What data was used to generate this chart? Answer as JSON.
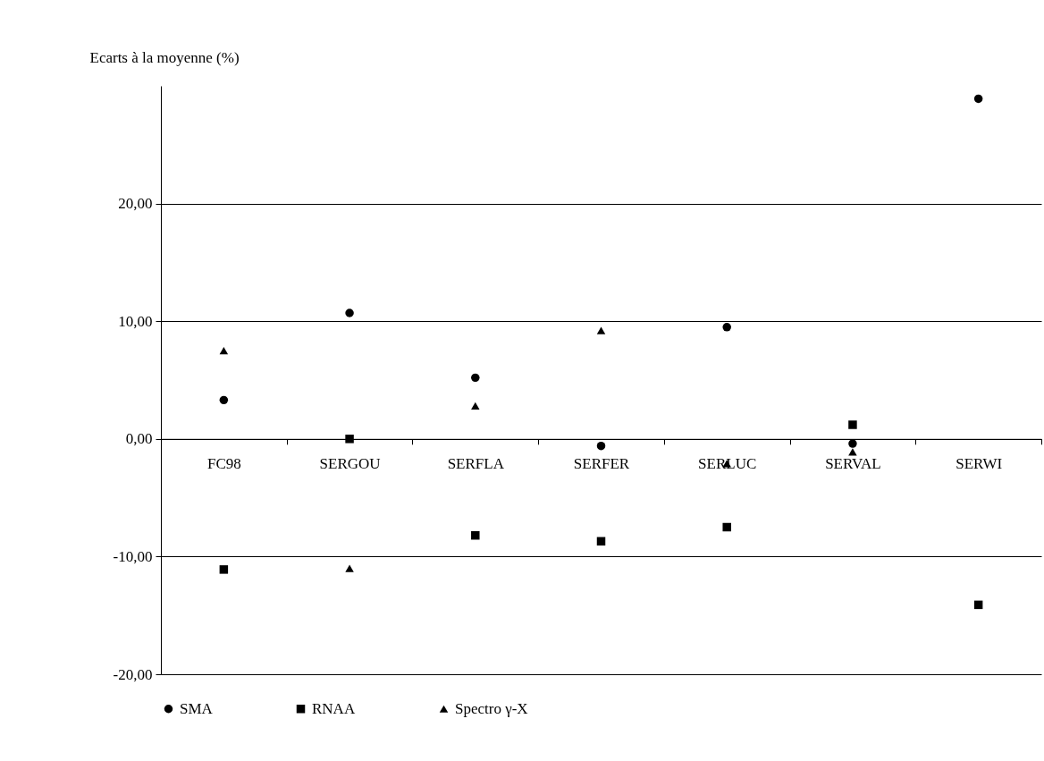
{
  "chart_data": {
    "type": "scatter",
    "ylabel": "Ecarts à la moyenne (%)",
    "categories": [
      "FC98",
      "SERGOU",
      "SERFLA",
      "SERFER",
      "SERLUC",
      "SERVAL",
      "SERWI"
    ],
    "series": [
      {
        "name": "SMA",
        "color": "#000000",
        "marker": "circle",
        "values": [
          3.3,
          10.7,
          5.2,
          -0.6,
          9.5,
          -0.4,
          28.9
        ]
      },
      {
        "name": "RNAA",
        "color": "#000000",
        "marker": "square",
        "values": [
          -11.1,
          0.0,
          -8.2,
          -8.7,
          -7.5,
          1.2,
          -14.1
        ]
      },
      {
        "name": "Spectro γ-X",
        "color": "#000000",
        "marker": "triangle",
        "values": [
          7.5,
          -11.0,
          2.8,
          9.2,
          -2.1,
          -1.1,
          null
        ]
      }
    ],
    "ylim": [
      -20,
      30
    ],
    "yticks": [
      {
        "value": -20,
        "label": "-20,00"
      },
      {
        "value": -10,
        "label": "-10,00"
      },
      {
        "value": 0,
        "label": "0,00"
      },
      {
        "value": 10,
        "label": "10,00"
      },
      {
        "value": 20,
        "label": "20,00"
      }
    ],
    "grid": "y",
    "legend": "bottom"
  }
}
